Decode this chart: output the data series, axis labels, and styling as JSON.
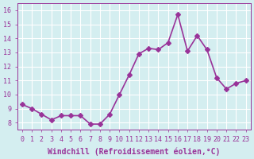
{
  "x": [
    0,
    1,
    2,
    3,
    4,
    5,
    6,
    7,
    8,
    9,
    10,
    11,
    12,
    13,
    14,
    15,
    16,
    17,
    18,
    19,
    20,
    21,
    22,
    23
  ],
  "y": [
    9.3,
    9.0,
    8.6,
    8.2,
    8.5,
    8.5,
    8.5,
    7.9,
    7.9,
    8.6,
    10.0,
    11.4,
    12.9,
    13.3,
    13.2,
    13.7,
    15.7,
    13.1,
    14.2,
    13.2,
    11.2,
    10.4,
    10.8,
    11.0
  ],
  "line_color": "#993399",
  "marker": "D",
  "markersize": 3,
  "linewidth": 1.2,
  "xlabel": "Windchill (Refroidissement éolien,°C)",
  "xlabel_fontsize": 7,
  "ylim": [
    7.5,
    16.5
  ],
  "yticks": [
    8,
    9,
    10,
    11,
    12,
    13,
    14,
    15,
    16
  ],
  "xticks": [
    0,
    1,
    2,
    3,
    4,
    5,
    6,
    7,
    8,
    9,
    10,
    11,
    12,
    13,
    14,
    15,
    16,
    17,
    18,
    19,
    20,
    21,
    22,
    23
  ],
  "background_color": "#d4eef0",
  "grid_color": "#ffffff",
  "tick_color": "#993399",
  "tick_fontsize": 6,
  "tick_fontfamily": "monospace"
}
